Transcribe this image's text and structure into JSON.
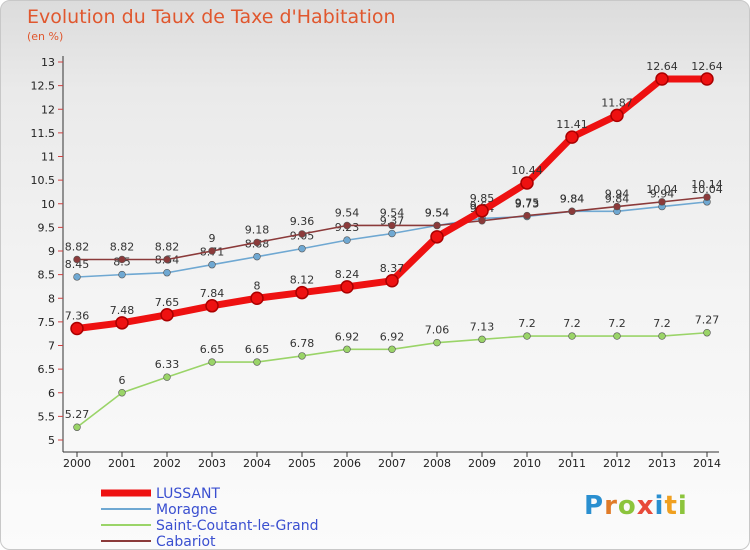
{
  "title": "Evolution du Taux de Taxe d'Habitation",
  "unit": "(en %)",
  "logo": {
    "letters": [
      {
        "ch": "P",
        "color": "#2a8fd0"
      },
      {
        "ch": "r",
        "color": "#e07b28"
      },
      {
        "ch": "o",
        "color": "#8cc43c"
      },
      {
        "ch": "x",
        "color": "#e84a3a"
      },
      {
        "ch": "i",
        "color": "#2a8fd0"
      },
      {
        "ch": "t",
        "color": "#f0a020"
      },
      {
        "ch": "i",
        "color": "#8cc43c"
      }
    ]
  },
  "chart_data": {
    "type": "line",
    "x": [
      2000,
      2001,
      2002,
      2003,
      2004,
      2005,
      2006,
      2007,
      2008,
      2009,
      2010,
      2011,
      2012,
      2013,
      2014
    ],
    "ylim": [
      5,
      13
    ],
    "yticks": [
      "5",
      "5.5",
      "6",
      "6.5",
      "7",
      "7.5",
      "8",
      "8.5",
      "9",
      "9.5",
      "10",
      "10.5",
      "11",
      "11.5",
      "12",
      "12.5",
      "13"
    ],
    "legend_position": "bottom-left",
    "grid": false,
    "series": [
      {
        "name": "Saint-Coutant-le-Grand",
        "color": "#9ad468",
        "values": [
          5.27,
          6,
          6.33,
          6.65,
          6.65,
          6.78,
          6.92,
          6.92,
          7.06,
          7.13,
          7.2,
          7.2,
          7.2,
          7.2,
          7.27
        ],
        "labels": [
          "5.27",
          "6",
          "6.33",
          "6.65",
          "6.65",
          "6.78",
          "6.92",
          "6.92",
          "7.06",
          "7.13",
          "7.2",
          "7.2",
          "7.2",
          "7.2",
          "7.27"
        ]
      },
      {
        "name": "Moragne",
        "color": "#6fa8d2",
        "values": [
          8.45,
          8.5,
          8.54,
          8.71,
          8.88,
          9.05,
          9.23,
          9.37,
          9.54,
          9.69,
          9.73,
          9.84,
          9.84,
          9.94,
          10.04
        ],
        "labels": [
          "8.45",
          "8.5",
          "8.54",
          "8.71",
          "8.88",
          "9.05",
          "9.23",
          "9.37",
          "9.54",
          "9.69",
          "9.73",
          "9.84",
          "9.84",
          "9.94",
          "10.04"
        ]
      },
      {
        "name": "Cabariot",
        "color": "#8b3a3a",
        "values": [
          8.82,
          8.82,
          8.82,
          9,
          9.18,
          9.36,
          9.54,
          9.54,
          9.54,
          9.64,
          9.75,
          9.84,
          9.94,
          10.04,
          10.14
        ],
        "labels": [
          "8.82",
          "8.82",
          "8.82",
          "9",
          "9.18",
          "9.36",
          "9.54",
          "9.54",
          "9.54",
          "9.64",
          "9.75",
          "9.84",
          "9.94",
          "10.04",
          "10.14"
        ]
      },
      {
        "name": "LUSSANT",
        "color": "#ee1111",
        "values": [
          7.36,
          7.48,
          7.65,
          7.84,
          8,
          8.12,
          8.24,
          8.37,
          9.3,
          9.85,
          10.44,
          11.41,
          11.87,
          12.64,
          12.64
        ],
        "labels": [
          "7.36",
          "7.48",
          "7.65",
          "7.84",
          "8",
          "8.12",
          "8.24",
          "8.37",
          "",
          "9.85",
          "10.44",
          "11.41",
          "11.87",
          "12.64",
          "12.64"
        ]
      }
    ],
    "legend_order": [
      "LUSSANT",
      "Moragne",
      "Saint-Coutant-le-Grand",
      "Cabariot"
    ]
  }
}
